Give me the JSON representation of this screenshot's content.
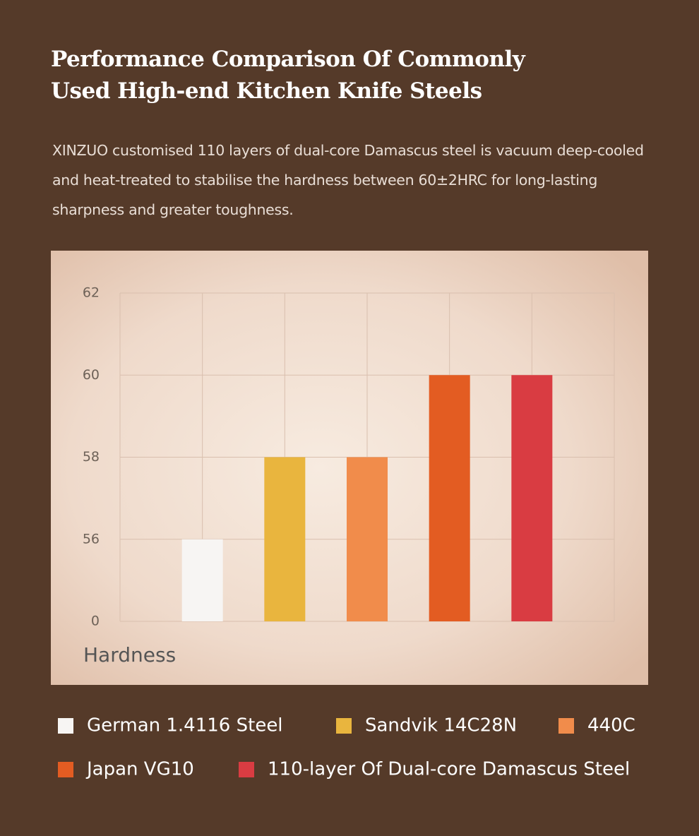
{
  "chart_data": {
    "type": "bar",
    "title": "Performance Comparison Of Commonly Used High-end Kitchen Knife Steels",
    "subtitle": "XINZUO customised 110 layers of dual-core Damascus steel  is vacuum deep-cooled and heat-treated to stabilise the hardness between 60±2HRC for long-lasting sharpness and greater toughness.",
    "y_label": "Hardness",
    "ylim": [
      0,
      62
    ],
    "yticks": [
      0,
      56,
      58,
      60,
      62
    ],
    "grid": true,
    "series": [
      {
        "name": "German 1.4116 Steel",
        "color": "#f7f5f3",
        "values": [
          56
        ]
      },
      {
        "name": "Sandvik 14C28N",
        "color": "#e9b53e",
        "values": [
          58
        ]
      },
      {
        "name": "440C",
        "color": "#f18c4b",
        "values": [
          58
        ]
      },
      {
        "name": "Japan  VG10",
        "color": "#e35c22",
        "values": [
          60
        ]
      },
      {
        "name": "110-layer Of Dual-core Damascus Steel",
        "color": "#d93c42",
        "values": [
          60
        ]
      }
    ]
  }
}
